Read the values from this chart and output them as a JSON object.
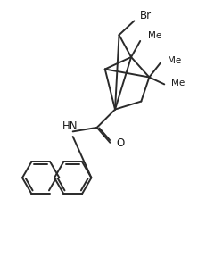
{
  "bg_color": "#ffffff",
  "line_color": "#2a2a2a",
  "line_width": 1.4,
  "br_label": "Br",
  "hn_label": "HN",
  "o_label": "O",
  "figsize": [
    2.31,
    2.88
  ],
  "dpi": 100,
  "xlim": [
    0,
    10
  ],
  "ylim": [
    0,
    12.5
  ]
}
